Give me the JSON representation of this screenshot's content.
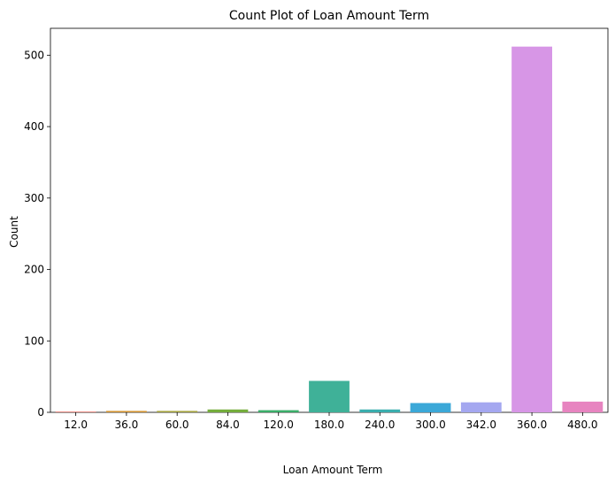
{
  "chart_data": {
    "type": "bar",
    "title": "Count Plot of Loan Amount Term",
    "xlabel": "Loan Amount Term",
    "ylabel": "Count",
    "categories": [
      "12.0",
      "36.0",
      "60.0",
      "84.0",
      "120.0",
      "180.0",
      "240.0",
      "300.0",
      "342.0",
      "360.0",
      "480.0"
    ],
    "values": [
      1,
      2,
      2,
      4,
      3,
      44,
      4,
      13,
      14,
      512,
      15
    ],
    "colors": [
      "#e8756b",
      "#d39535",
      "#a5a440",
      "#74ad3c",
      "#3aae69",
      "#3fb198",
      "#3aaeae",
      "#3ba8d8",
      "#a4a7f0",
      "#d796e6",
      "#e784c0"
    ],
    "ylim": [
      0,
      537.6
    ],
    "yticks": [
      "0",
      "100",
      "200",
      "300",
      "400",
      "500"
    ],
    "ytick_values": [
      0,
      100,
      200,
      300,
      400,
      500
    ],
    "grid": false,
    "legend": "none"
  }
}
